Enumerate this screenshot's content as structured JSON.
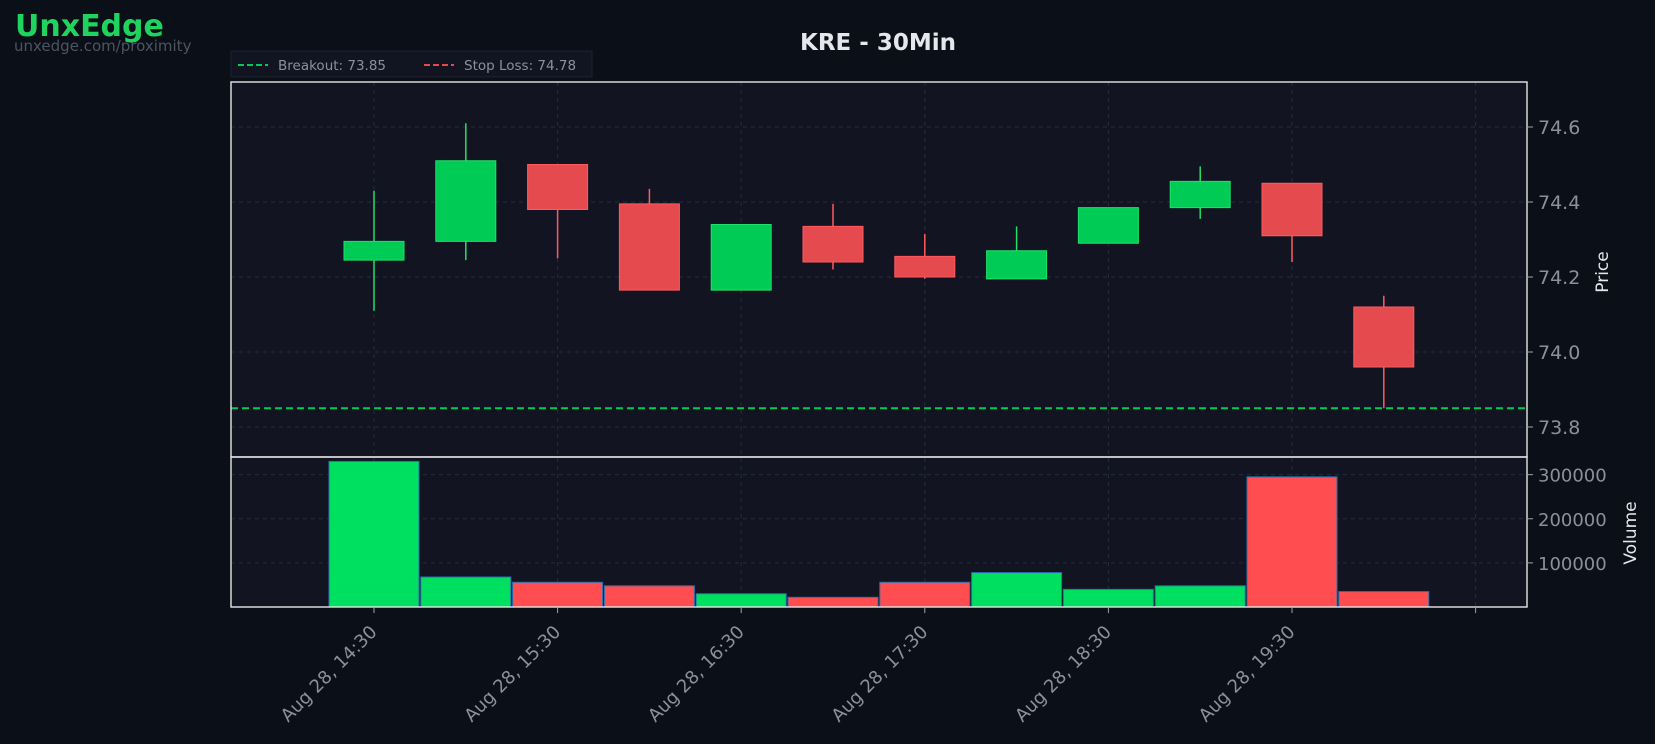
{
  "brand": {
    "name": "UnxEdge",
    "url": "unxedge.com/proximity"
  },
  "colors": {
    "background": "#0b0f17",
    "panel": "#121521",
    "up": "#00cc55",
    "down": "#e54a4e",
    "vol_up": "#00e060",
    "vol_down": "#ff4d50",
    "breakout": "#00cc55",
    "stop": "#e54a4e",
    "brand": "#1fd35e"
  },
  "chart_data": {
    "type": "candlestick",
    "title": "KRE - 30Min",
    "price_ylabel": "Price",
    "volume_ylabel": "Volume",
    "price_ylim": [
      73.72,
      74.72
    ],
    "volume_ylim": [
      0,
      340000
    ],
    "price_yticks": [
      73.8,
      74.0,
      74.2,
      74.4,
      74.6
    ],
    "price_ytick_labels": [
      "73.8",
      "74.0",
      "74.2",
      "74.4",
      "74.6"
    ],
    "volume_yticks": [
      100000,
      200000,
      300000
    ],
    "volume_ytick_labels": [
      "100000",
      "200000",
      "300000"
    ],
    "xtick_labels": [
      "Aug 28, 14:30",
      "Aug 28, 15:30",
      "Aug 28, 16:30",
      "Aug 28, 17:30",
      "Aug 28, 18:30",
      "Aug 28, 19:30",
      ""
    ],
    "legend": [
      {
        "label": "Breakout: 73.85",
        "color": "#00cc55"
      },
      {
        "label": "Stop Loss: 74.78",
        "color": "#e54a4e"
      }
    ],
    "breakout": 73.85,
    "stop_loss": 74.78,
    "candles": [
      {
        "time": "Aug 28, 14:30",
        "open": 74.245,
        "high": 74.43,
        "low": 74.11,
        "close": 74.295,
        "volume": 330000
      },
      {
        "time": "Aug 28, 15:00",
        "open": 74.295,
        "high": 74.61,
        "low": 74.245,
        "close": 74.51,
        "volume": 68000
      },
      {
        "time": "Aug 28, 15:30",
        "open": 74.5,
        "high": 74.5,
        "low": 74.25,
        "close": 74.38,
        "volume": 56000
      },
      {
        "time": "Aug 28, 16:00",
        "open": 74.395,
        "high": 74.435,
        "low": 74.165,
        "close": 74.165,
        "volume": 48000
      },
      {
        "time": "Aug 28, 16:30",
        "open": 74.165,
        "high": 74.34,
        "low": 74.165,
        "close": 74.34,
        "volume": 30000
      },
      {
        "time": "Aug 28, 17:00",
        "open": 74.335,
        "high": 74.395,
        "low": 74.22,
        "close": 74.24,
        "volume": 22000
      },
      {
        "time": "Aug 28, 17:30",
        "open": 74.255,
        "high": 74.315,
        "low": 74.195,
        "close": 74.2,
        "volume": 56000
      },
      {
        "time": "Aug 28, 18:00",
        "open": 74.195,
        "high": 74.335,
        "low": 74.195,
        "close": 74.27,
        "volume": 78000
      },
      {
        "time": "Aug 28, 18:30",
        "open": 74.29,
        "high": 74.385,
        "low": 74.29,
        "close": 74.385,
        "volume": 40000
      },
      {
        "time": "Aug 28, 19:00",
        "open": 74.385,
        "high": 74.495,
        "low": 74.355,
        "close": 74.455,
        "volume": 48000
      },
      {
        "time": "Aug 28, 19:30",
        "open": 74.45,
        "high": 74.45,
        "low": 74.24,
        "close": 74.31,
        "volume": 295000
      },
      {
        "time": "Aug 28, 20:00",
        "open": 74.12,
        "high": 74.15,
        "low": 73.85,
        "close": 73.96,
        "volume": 35000
      }
    ]
  }
}
